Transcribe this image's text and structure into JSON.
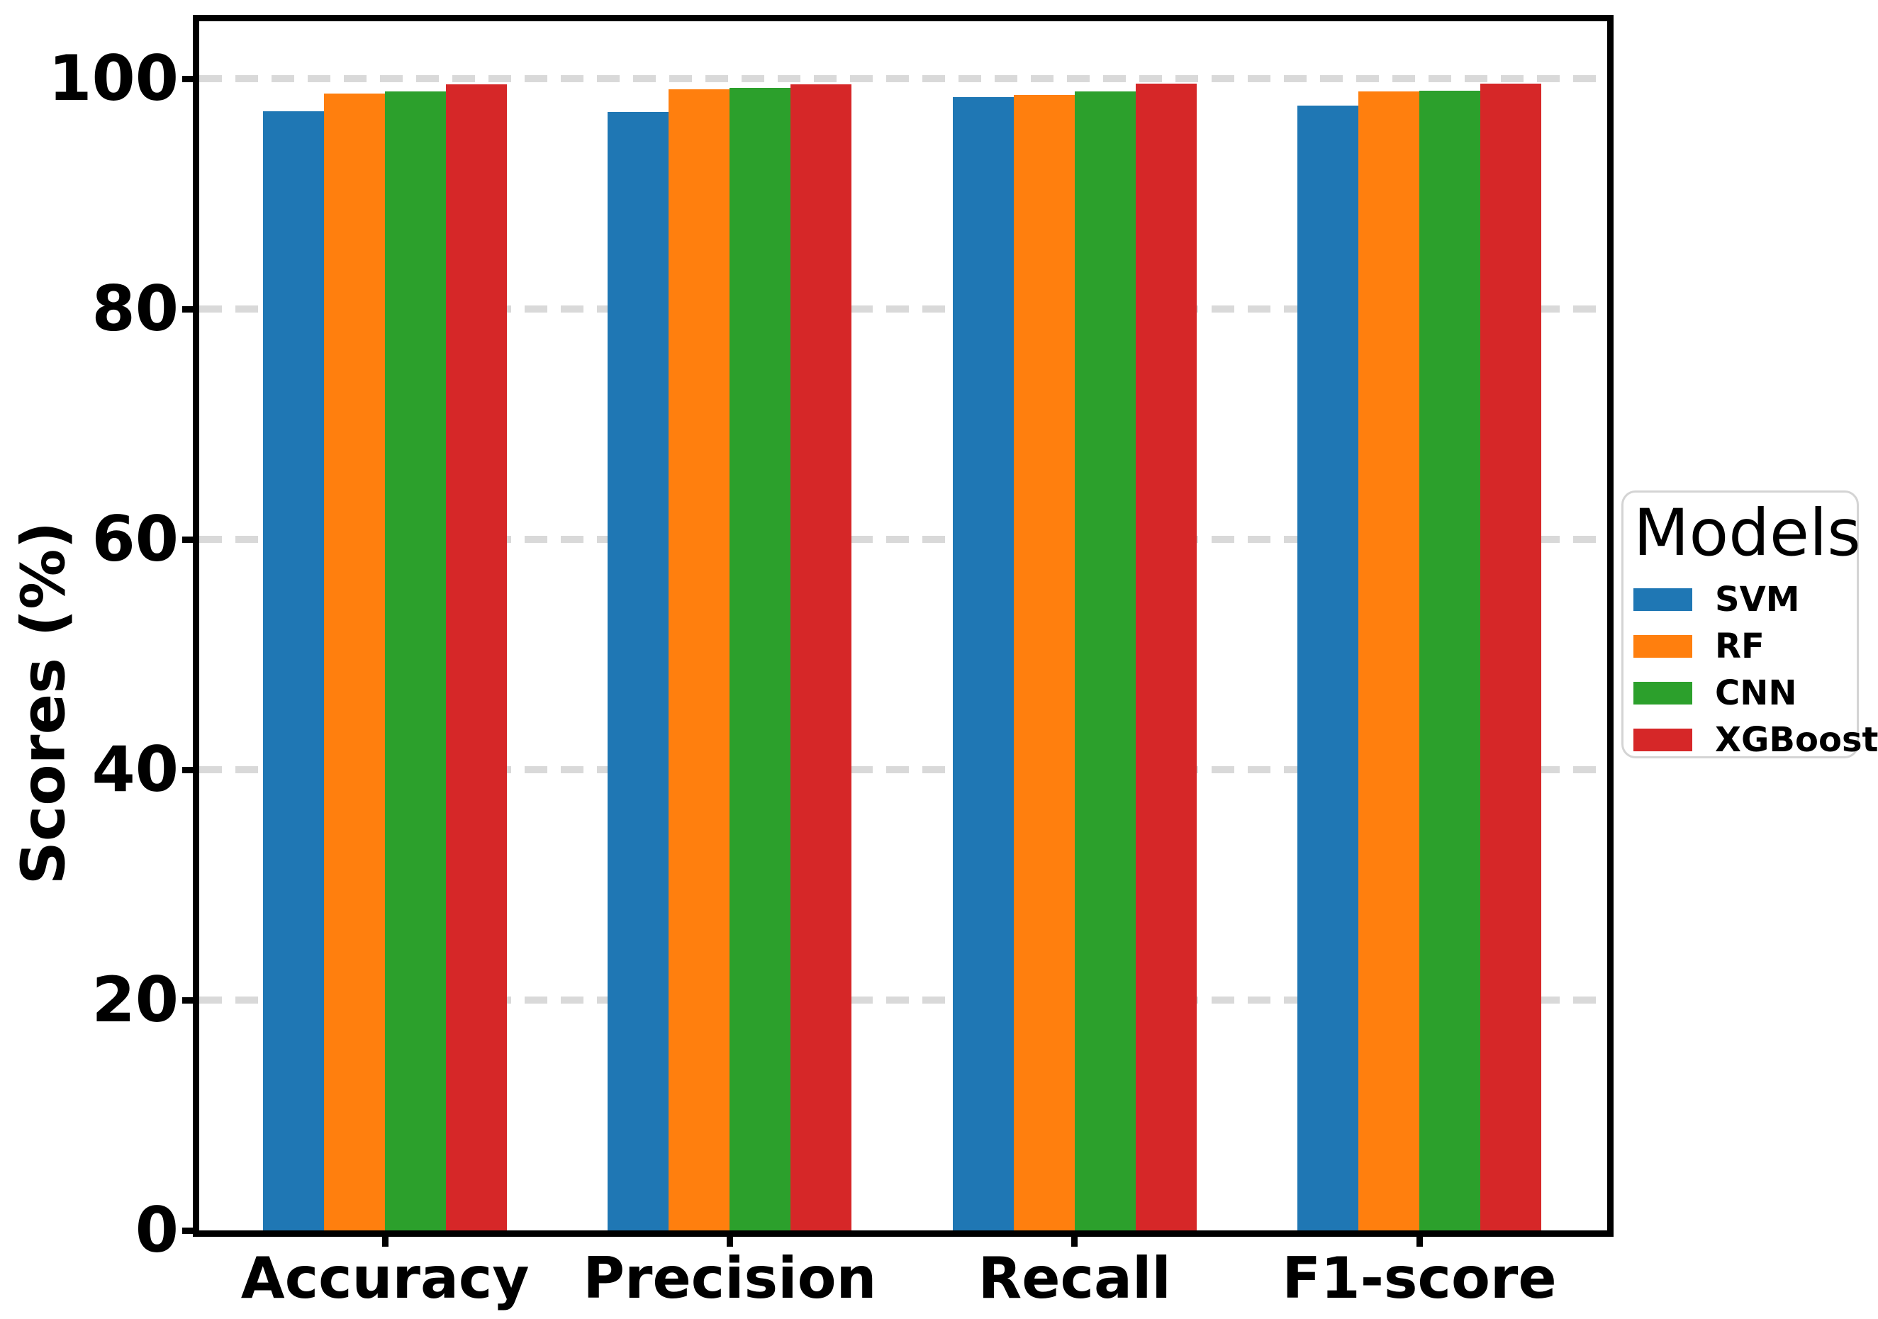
{
  "chart_data": {
    "type": "bar",
    "title": "",
    "xlabel": "",
    "ylabel": "Scores (%)",
    "categories": [
      "Accuracy",
      "Precision",
      "Recall",
      "F1-score"
    ],
    "series": [
      {
        "name": "SVM",
        "color": "#1f77b4",
        "values": [
          97.2,
          97.1,
          98.4,
          97.7
        ]
      },
      {
        "name": "RF",
        "color": "#ff7f0e",
        "values": [
          98.7,
          99.1,
          98.6,
          98.9
        ]
      },
      {
        "name": "CNN",
        "color": "#2ca02c",
        "values": [
          98.9,
          99.2,
          98.9,
          99.0
        ]
      },
      {
        "name": "XGBoost",
        "color": "#d62728",
        "values": [
          99.5,
          99.5,
          99.6,
          99.6
        ]
      }
    ],
    "ylim": [
      0,
      105
    ],
    "yticks": [
      0,
      20,
      40,
      60,
      80,
      100
    ],
    "grid": "horizontal-dashed",
    "gridline_color": "#d9d9d9",
    "spine_color": "#000000",
    "legend": {
      "title": "Models",
      "position": "outside-right",
      "entries": [
        "SVM",
        "RF",
        "CNN",
        "XGBoost"
      ]
    }
  }
}
